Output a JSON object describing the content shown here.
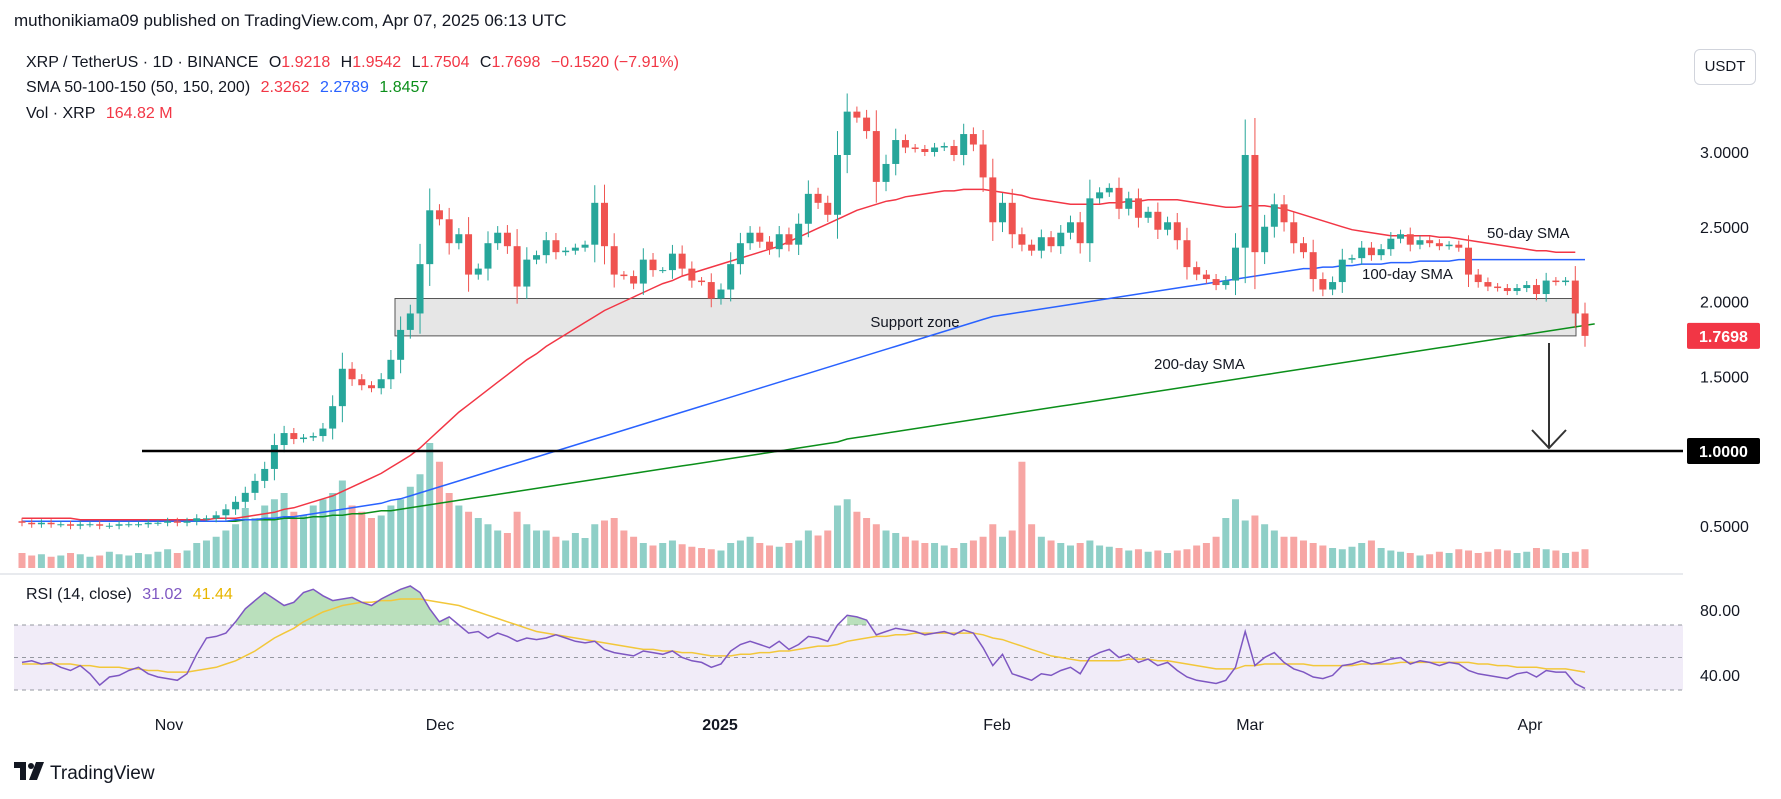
{
  "header": {
    "publisher_line": "muthonikiama09 published on TradingView.com, Apr 07, 2025 06:13 UTC"
  },
  "legend": {
    "symbol": "XRP / TetherUS · 1D · BINANCE",
    "open_label": "O",
    "open": "1.9218",
    "high_label": "H",
    "high": "1.9542",
    "low_label": "L",
    "low": "1.7504",
    "close_label": "C",
    "close": "1.7698",
    "change": "−0.1520 (−7.91%)",
    "sma_title": "SMA 50-100-150 (50, 150, 200)",
    "sma_50": "2.3262",
    "sma_100": "2.2789",
    "sma_200": "1.8457",
    "vol_title": "Vol · XRP",
    "vol_value": "164.82 M"
  },
  "currency_button": "USDT",
  "rsi_legend": {
    "title": "RSI (14, close)",
    "rsi": "31.02",
    "rsi_ma": "41.44"
  },
  "footer": {
    "brand": "TradingView",
    "logo_icon": "tradingview-logo-icon"
  },
  "colors": {
    "up": "#26a69a",
    "down": "#ef5350",
    "vol_up": "#8fcfc7",
    "vol_down": "#f7a6a4",
    "sma50": "#f23645",
    "sma100": "#2962ff",
    "sma200": "#0b8f1a",
    "rsi": "#7e57c2",
    "rsi_ma": "#f2c73a"
  },
  "chart_data": {
    "type": "candlestick",
    "x_ticks": [
      "Nov",
      "Dec",
      "2025",
      "Feb",
      "Mar",
      "Apr"
    ],
    "y_ticks": [
      "3.0000",
      "2.5000",
      "2.0000",
      "1.5000",
      "1.0000",
      "0.5000"
    ],
    "y_range": [
      0.3,
      3.4
    ],
    "last_price_label": "1.7698",
    "level_label": "1.0000",
    "level": 1.0,
    "support_zone": {
      "label": "Support zone",
      "low": 1.77,
      "high": 2.02
    },
    "annotations": {
      "sma50": "50-day SMA",
      "sma100": "100-day SMA",
      "sma200": "200-day SMA"
    },
    "closes": [
      0.52,
      0.51,
      0.52,
      0.51,
      0.51,
      0.5,
      0.51,
      0.51,
      0.5,
      0.5,
      0.51,
      0.51,
      0.51,
      0.52,
      0.52,
      0.53,
      0.52,
      0.53,
      0.55,
      0.55,
      0.57,
      0.61,
      0.66,
      0.72,
      0.8,
      0.88,
      1.04,
      1.12,
      1.08,
      1.09,
      1.1,
      1.15,
      1.3,
      1.55,
      1.48,
      1.44,
      1.42,
      1.48,
      1.61,
      1.81,
      1.92,
      2.25,
      2.61,
      2.55,
      2.39,
      2.45,
      2.18,
      2.22,
      2.39,
      2.46,
      2.37,
      2.1,
      2.28,
      2.31,
      2.41,
      2.33,
      2.34,
      2.36,
      2.38,
      2.66,
      2.37,
      2.18,
      2.17,
      2.12,
      2.28,
      2.21,
      2.21,
      2.32,
      2.22,
      2.14,
      2.13,
      2.02,
      2.08,
      2.25,
      2.39,
      2.46,
      2.4,
      2.35,
      2.45,
      2.38,
      2.52,
      2.72,
      2.66,
      2.58,
      2.98,
      3.27,
      3.23,
      3.14,
      2.8,
      2.92,
      3.08,
      3.03,
      3.02,
      3.0,
      3.03,
      3.04,
      2.98,
      3.12,
      3.05,
      2.83,
      2.53,
      2.66,
      2.45,
      2.38,
      2.34,
      2.43,
      2.37,
      2.46,
      2.53,
      2.39,
      2.69,
      2.73,
      2.76,
      2.62,
      2.69,
      2.56,
      2.6,
      2.48,
      2.53,
      2.41,
      2.23,
      2.18,
      2.15,
      2.11,
      2.14,
      2.36,
      2.98,
      2.33,
      2.5,
      2.65,
      2.53,
      2.39,
      2.33,
      2.15,
      2.08,
      2.13,
      2.28,
      2.29,
      2.36,
      2.31,
      2.35,
      2.42,
      2.45,
      2.38,
      2.41,
      2.39,
      2.37,
      2.38,
      2.36,
      2.18,
      2.13,
      2.1,
      2.09,
      2.07,
      2.09,
      2.11,
      2.05,
      2.14,
      2.13,
      2.14,
      1.92,
      1.77
    ],
    "opens": [
      0.53,
      0.52,
      0.51,
      0.52,
      0.51,
      0.51,
      0.5,
      0.51,
      0.51,
      0.5,
      0.5,
      0.51,
      0.51,
      0.51,
      0.52,
      0.52,
      0.53,
      0.52,
      0.53,
      0.55,
      0.55,
      0.57,
      0.61,
      0.66,
      0.72,
      0.8,
      0.88,
      1.04,
      1.12,
      1.08,
      1.09,
      1.1,
      1.15,
      1.3,
      1.55,
      1.48,
      1.44,
      1.42,
      1.48,
      1.61,
      1.81,
      1.92,
      2.25,
      2.61,
      2.55,
      2.39,
      2.45,
      2.18,
      2.22,
      2.39,
      2.46,
      2.37,
      2.1,
      2.28,
      2.31,
      2.41,
      2.33,
      2.34,
      2.36,
      2.38,
      2.66,
      2.37,
      2.18,
      2.17,
      2.12,
      2.28,
      2.21,
      2.21,
      2.32,
      2.22,
      2.14,
      2.13,
      2.02,
      2.08,
      2.25,
      2.39,
      2.46,
      2.4,
      2.35,
      2.45,
      2.38,
      2.52,
      2.72,
      2.66,
      2.58,
      2.98,
      3.27,
      3.23,
      3.14,
      2.8,
      2.92,
      3.08,
      3.03,
      3.02,
      3.0,
      3.03,
      3.04,
      2.98,
      3.12,
      3.05,
      2.83,
      2.53,
      2.66,
      2.45,
      2.38,
      2.34,
      2.43,
      2.37,
      2.46,
      2.53,
      2.39,
      2.69,
      2.73,
      2.76,
      2.62,
      2.69,
      2.56,
      2.6,
      2.48,
      2.53,
      2.41,
      2.23,
      2.18,
      2.15,
      2.11,
      2.14,
      2.36,
      2.98,
      2.33,
      2.5,
      2.65,
      2.53,
      2.39,
      2.33,
      2.15,
      2.08,
      2.13,
      2.28,
      2.29,
      2.36,
      2.31,
      2.35,
      2.42,
      2.45,
      2.38,
      2.41,
      2.39,
      2.37,
      2.38,
      2.36,
      2.18,
      2.13,
      2.1,
      2.09,
      2.07,
      2.09,
      2.11,
      2.05,
      2.14,
      2.13,
      2.14,
      1.92
    ],
    "volumes": [
      0.12,
      0.1,
      0.11,
      0.09,
      0.1,
      0.12,
      0.11,
      0.09,
      0.1,
      0.13,
      0.11,
      0.1,
      0.12,
      0.11,
      0.13,
      0.15,
      0.12,
      0.14,
      0.2,
      0.22,
      0.25,
      0.3,
      0.35,
      0.48,
      0.4,
      0.5,
      0.55,
      0.6,
      0.45,
      0.42,
      0.5,
      0.55,
      0.6,
      0.7,
      0.5,
      0.45,
      0.4,
      0.42,
      0.5,
      0.55,
      0.65,
      0.75,
      1.0,
      0.85,
      0.6,
      0.5,
      0.45,
      0.4,
      0.35,
      0.3,
      0.28,
      0.45,
      0.35,
      0.3,
      0.3,
      0.25,
      0.22,
      0.28,
      0.24,
      0.35,
      0.38,
      0.4,
      0.3,
      0.25,
      0.2,
      0.18,
      0.2,
      0.22,
      0.19,
      0.17,
      0.16,
      0.15,
      0.14,
      0.2,
      0.22,
      0.25,
      0.2,
      0.18,
      0.17,
      0.2,
      0.22,
      0.3,
      0.26,
      0.3,
      0.5,
      0.55,
      0.45,
      0.4,
      0.35,
      0.3,
      0.28,
      0.25,
      0.22,
      0.2,
      0.2,
      0.18,
      0.16,
      0.2,
      0.22,
      0.25,
      0.35,
      0.25,
      0.3,
      0.85,
      0.35,
      0.25,
      0.22,
      0.2,
      0.18,
      0.2,
      0.22,
      0.18,
      0.17,
      0.16,
      0.14,
      0.15,
      0.13,
      0.14,
      0.12,
      0.14,
      0.15,
      0.18,
      0.2,
      0.25,
      0.4,
      0.55,
      0.38,
      0.42,
      0.35,
      0.3,
      0.25,
      0.25,
      0.22,
      0.2,
      0.18,
      0.16,
      0.15,
      0.17,
      0.2,
      0.22,
      0.16,
      0.14,
      0.13,
      0.12,
      0.1,
      0.11,
      0.13,
      0.12,
      0.15,
      0.14,
      0.12,
      0.13,
      0.15,
      0.14,
      0.12,
      0.13,
      0.16,
      0.15,
      0.14,
      0.12,
      0.13,
      0.15
    ],
    "sma50": [
      0.55,
      0.55,
      0.55,
      0.55,
      0.55,
      0.55,
      0.54,
      0.54,
      0.54,
      0.54,
      0.54,
      0.54,
      0.54,
      0.54,
      0.54,
      0.54,
      0.54,
      0.54,
      0.54,
      0.54,
      0.55,
      0.55,
      0.55,
      0.56,
      0.57,
      0.58,
      0.59,
      0.61,
      0.62,
      0.64,
      0.66,
      0.68,
      0.7,
      0.73,
      0.76,
      0.79,
      0.82,
      0.85,
      0.89,
      0.93,
      0.97,
      1.02,
      1.08,
      1.14,
      1.2,
      1.26,
      1.31,
      1.36,
      1.41,
      1.46,
      1.51,
      1.56,
      1.61,
      1.65,
      1.7,
      1.74,
      1.78,
      1.82,
      1.86,
      1.9,
      1.94,
      1.97,
      2.0,
      2.03,
      2.06,
      2.09,
      2.12,
      2.14,
      2.17,
      2.19,
      2.21,
      2.23,
      2.25,
      2.27,
      2.29,
      2.31,
      2.33,
      2.35,
      2.37,
      2.4,
      2.43,
      2.46,
      2.49,
      2.52,
      2.55,
      2.58,
      2.61,
      2.63,
      2.65,
      2.67,
      2.68,
      2.7,
      2.71,
      2.72,
      2.73,
      2.74,
      2.74,
      2.75,
      2.75,
      2.75,
      2.74,
      2.73,
      2.72,
      2.71,
      2.69,
      2.68,
      2.67,
      2.66,
      2.65,
      2.65,
      2.65,
      2.65,
      2.66,
      2.66,
      2.67,
      2.67,
      2.68,
      2.68,
      2.68,
      2.68,
      2.67,
      2.66,
      2.65,
      2.64,
      2.63,
      2.63,
      2.64,
      2.64,
      2.64,
      2.63,
      2.62,
      2.6,
      2.58,
      2.56,
      2.54,
      2.52,
      2.5,
      2.48,
      2.47,
      2.46,
      2.45,
      2.44,
      2.44,
      2.44,
      2.44,
      2.44,
      2.43,
      2.43,
      2.42,
      2.41,
      2.4,
      2.39,
      2.38,
      2.37,
      2.36,
      2.35,
      2.34,
      2.34,
      2.33,
      2.33,
      2.33
    ],
    "sma100": [
      0.53,
      0.53,
      0.53,
      0.53,
      0.53,
      0.53,
      0.53,
      0.53,
      0.53,
      0.53,
      0.53,
      0.53,
      0.53,
      0.53,
      0.53,
      0.53,
      0.53,
      0.53,
      0.53,
      0.53,
      0.53,
      0.53,
      0.54,
      0.54,
      0.54,
      0.55,
      0.55,
      0.56,
      0.56,
      0.57,
      0.58,
      0.59,
      0.6,
      0.61,
      0.62,
      0.63,
      0.64,
      0.65,
      0.67,
      0.68,
      0.7,
      0.72,
      0.74,
      0.76,
      0.78,
      0.8,
      0.82,
      0.84,
      0.86,
      0.88,
      0.9,
      0.92,
      0.94,
      0.96,
      0.98,
      1.0,
      1.02,
      1.04,
      1.06,
      1.08,
      1.1,
      1.12,
      1.14,
      1.16,
      1.18,
      1.2,
      1.22,
      1.24,
      1.26,
      1.28,
      1.3,
      1.32,
      1.34,
      1.36,
      1.38,
      1.4,
      1.42,
      1.44,
      1.46,
      1.48,
      1.5,
      1.52,
      1.54,
      1.56,
      1.58,
      1.6,
      1.62,
      1.64,
      1.66,
      1.68,
      1.7,
      1.72,
      1.74,
      1.76,
      1.78,
      1.8,
      1.82,
      1.84,
      1.86,
      1.88,
      1.9,
      1.91,
      1.92,
      1.93,
      1.94,
      1.95,
      1.96,
      1.97,
      1.98,
      1.99,
      2.0,
      2.01,
      2.02,
      2.03,
      2.04,
      2.05,
      2.06,
      2.07,
      2.08,
      2.09,
      2.1,
      2.11,
      2.12,
      2.13,
      2.14,
      2.15,
      2.16,
      2.17,
      2.18,
      2.19,
      2.2,
      2.21,
      2.22,
      2.22,
      2.23,
      2.23,
      2.24,
      2.24,
      2.25,
      2.25,
      2.25,
      2.26,
      2.26,
      2.26,
      2.27,
      2.27,
      2.27,
      2.27,
      2.28,
      2.28,
      2.28,
      2.28,
      2.28,
      2.28,
      2.28,
      2.28,
      2.28,
      2.28,
      2.28,
      2.28,
      2.28,
      2.28
    ],
    "sma200": [
      0.53,
      0.53,
      0.53,
      0.53,
      0.53,
      0.53,
      0.53,
      0.53,
      0.53,
      0.53,
      0.53,
      0.53,
      0.53,
      0.53,
      0.53,
      0.53,
      0.53,
      0.53,
      0.53,
      0.53,
      0.53,
      0.53,
      0.53,
      0.54,
      0.54,
      0.54,
      0.54,
      0.55,
      0.55,
      0.55,
      0.56,
      0.56,
      0.57,
      0.57,
      0.58,
      0.58,
      0.59,
      0.6,
      0.6,
      0.61,
      0.62,
      0.63,
      0.64,
      0.65,
      0.66,
      0.67,
      0.68,
      0.69,
      0.7,
      0.71,
      0.72,
      0.73,
      0.74,
      0.75,
      0.76,
      0.77,
      0.78,
      0.79,
      0.8,
      0.81,
      0.82,
      0.83,
      0.84,
      0.85,
      0.86,
      0.87,
      0.88,
      0.89,
      0.9,
      0.91,
      0.92,
      0.93,
      0.94,
      0.95,
      0.96,
      0.97,
      0.98,
      0.99,
      1.0,
      1.01,
      1.02,
      1.03,
      1.04,
      1.05,
      1.06,
      1.08,
      1.09,
      1.1,
      1.11,
      1.12,
      1.13,
      1.14,
      1.15,
      1.16,
      1.17,
      1.18,
      1.19,
      1.2,
      1.21,
      1.22,
      1.23,
      1.24,
      1.25,
      1.26,
      1.27,
      1.28,
      1.29,
      1.3,
      1.31,
      1.32,
      1.33,
      1.34,
      1.35,
      1.36,
      1.37,
      1.38,
      1.39,
      1.4,
      1.41,
      1.42,
      1.43,
      1.44,
      1.45,
      1.46,
      1.47,
      1.48,
      1.49,
      1.5,
      1.51,
      1.52,
      1.53,
      1.54,
      1.55,
      1.56,
      1.57,
      1.58,
      1.59,
      1.6,
      1.61,
      1.62,
      1.63,
      1.64,
      1.65,
      1.66,
      1.67,
      1.68,
      1.69,
      1.7,
      1.71,
      1.72,
      1.73,
      1.74,
      1.75,
      1.76,
      1.77,
      1.78,
      1.79,
      1.8,
      1.81,
      1.82,
      1.83,
      1.84,
      1.85
    ],
    "rsi_range": [
      20,
      100
    ],
    "rsi_ticks": [
      "80.00",
      "40.00"
    ],
    "rsi_bands": [
      70,
      30
    ],
    "rsi_mid": 50,
    "rsi": [
      47,
      48,
      46,
      47,
      44,
      42,
      45,
      40,
      33,
      38,
      39,
      42,
      44,
      40,
      38,
      37,
      36,
      40,
      52,
      62,
      63,
      65,
      72,
      80,
      85,
      90,
      86,
      82,
      84,
      90,
      92,
      88,
      85,
      86,
      87,
      84,
      82,
      86,
      89,
      92,
      94,
      90,
      80,
      72,
      75,
      70,
      65,
      66,
      62,
      65,
      63,
      60,
      62,
      61,
      62,
      64,
      62,
      60,
      59,
      60,
      55,
      53,
      52,
      51,
      54,
      53,
      52,
      54,
      50,
      48,
      47,
      44,
      46,
      54,
      58,
      60,
      58,
      56,
      60,
      55,
      58,
      63,
      62,
      60,
      70,
      76,
      75,
      73,
      64,
      66,
      68,
      67,
      66,
      64,
      65,
      66,
      64,
      67,
      65,
      56,
      45,
      52,
      40,
      38,
      36,
      40,
      39,
      42,
      44,
      40,
      50,
      53,
      55,
      50,
      52,
      47,
      49,
      45,
      47,
      42,
      38,
      36,
      35,
      34,
      36,
      44,
      66,
      45,
      50,
      53,
      47,
      43,
      41,
      38,
      37,
      39,
      45,
      46,
      48,
      46,
      47,
      49,
      50,
      46,
      48,
      47,
      45,
      47,
      46,
      42,
      40,
      39,
      38,
      37,
      40,
      41,
      38,
      42,
      41,
      41,
      34,
      31
    ],
    "rsi_ma": [
      46,
      46,
      46,
      46,
      46,
      46,
      45,
      45,
      44,
      44,
      44,
      43,
      43,
      42,
      42,
      41,
      41,
      41,
      42,
      43,
      44,
      46,
      48,
      51,
      54,
      58,
      62,
      65,
      68,
      72,
      75,
      78,
      80,
      82,
      83,
      84,
      84,
      85,
      85,
      86,
      86,
      86,
      85,
      84,
      83,
      82,
      80,
      78,
      76,
      74,
      72,
      70,
      68,
      66,
      65,
      64,
      63,
      62,
      61,
      60,
      59,
      58,
      57,
      56,
      55,
      55,
      54,
      54,
      53,
      53,
      52,
      51,
      51,
      51,
      52,
      52,
      53,
      53,
      54,
      54,
      55,
      56,
      57,
      57,
      58,
      60,
      61,
      62,
      63,
      63,
      64,
      64,
      65,
      65,
      65,
      65,
      65,
      65,
      65,
      64,
      62,
      61,
      59,
      57,
      55,
      53,
      51,
      50,
      49,
      48,
      48,
      48,
      48,
      48,
      49,
      49,
      49,
      48,
      48,
      47,
      46,
      45,
      44,
      43,
      43,
      43,
      45,
      45,
      46,
      46,
      46,
      46,
      46,
      45,
      45,
      45,
      45,
      45,
      46,
      46,
      46,
      46,
      47,
      47,
      47,
      47,
      47,
      47,
      47,
      47,
      46,
      46,
      45,
      45,
      44,
      44,
      44,
      43,
      43,
      43,
      42,
      41
    ]
  }
}
